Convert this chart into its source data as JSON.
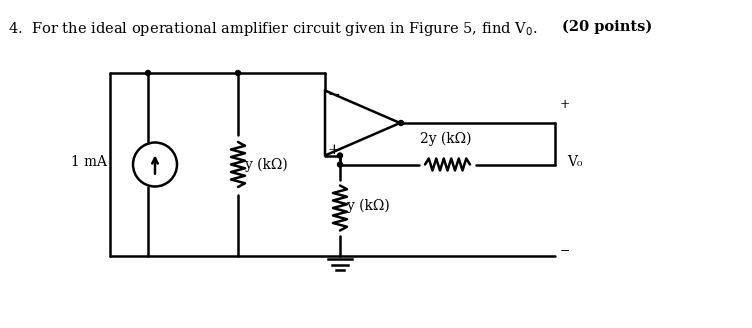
{
  "title": "4.  For the ideal operational amplifier circuit given in Figure 5, find V₀. (20 points)",
  "title_bold_part": "(20 points)",
  "bg_color": "#ffffff",
  "line_color": "#000000",
  "line_width": 1.8,
  "font_size": 11,
  "label_1mA": "1 mA",
  "label_ykohm1": "y (kΩ)",
  "label_ykohm2": "y (kΩ)",
  "label_2ykohm": "2y (kΩ)",
  "label_Vo": "V₀",
  "label_plus": "+",
  "label_minus": "−",
  "label_plus2": "+"
}
